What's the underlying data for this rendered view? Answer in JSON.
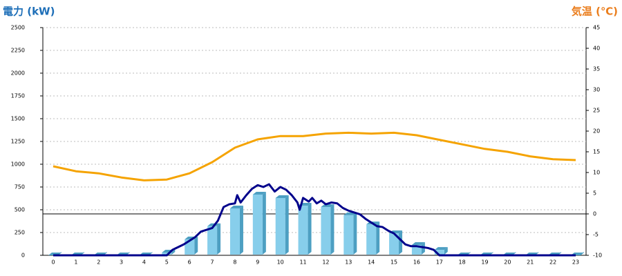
{
  "chart_data": {
    "type": "bar",
    "y_title": "電力 (kW)",
    "y2_title": "気温 (℃)",
    "categories": [
      "0",
      "1",
      "2",
      "3",
      "4",
      "5",
      "6",
      "7",
      "8",
      "9",
      "10",
      "11",
      "12",
      "13",
      "14",
      "15",
      "16",
      "17",
      "18",
      "19",
      "20",
      "21",
      "22",
      "23"
    ],
    "ylim": [
      0,
      2500
    ],
    "yticks": [
      0,
      250,
      500,
      750,
      1000,
      1250,
      1500,
      1750,
      2000,
      2250,
      2500
    ],
    "y2lim": [
      -10,
      45
    ],
    "y2ticks": [
      -10,
      -5,
      0,
      5,
      10,
      15,
      20,
      25,
      30,
      35,
      40,
      45
    ],
    "grid": true,
    "series": [
      {
        "kind": "bar",
        "color": "#87ceeb",
        "side_color": "#4d9fc2",
        "values": [
          0,
          0,
          0,
          0,
          0,
          30,
          175,
          320,
          515,
          667,
          629,
          545,
          530,
          440,
          340,
          242,
          114,
          60,
          0,
          0,
          0,
          0,
          0,
          0
        ]
      },
      {
        "kind": "line",
        "color": "#00008b",
        "x": [
          0,
          5,
          5.25,
          5.5,
          5.75,
          6,
          6.25,
          6.5,
          6.75,
          7,
          7.25,
          7.5,
          7.75,
          8,
          8.1,
          8.25,
          8.5,
          8.75,
          9,
          9.25,
          9.5,
          9.75,
          10,
          10.25,
          10.5,
          10.75,
          10.85,
          11,
          11.25,
          11.4,
          11.6,
          11.8,
          12,
          12.25,
          12.5,
          12.75,
          13,
          13.25,
          13.5,
          13.75,
          14,
          14.25,
          14.5,
          14.75,
          15,
          15.25,
          15.5,
          15.75,
          16,
          16.25,
          16.5,
          16.75,
          17,
          23
        ],
        "values": [
          0,
          0,
          60,
          90,
          120,
          160,
          200,
          260,
          280,
          300,
          380,
          530,
          560,
          570,
          660,
          580,
          660,
          730,
          770,
          750,
          780,
          700,
          750,
          720,
          660,
          580,
          500,
          630,
          590,
          630,
          570,
          600,
          560,
          580,
          570,
          520,
          490,
          470,
          450,
          400,
          360,
          320,
          310,
          270,
          240,
          180,
          120,
          100,
          100,
          90,
          80,
          60,
          0,
          0
        ]
      },
      {
        "kind": "line",
        "axis": "y2",
        "color": "#f5a300",
        "values": [
          11.5,
          10.3,
          9.8,
          8.8,
          8.1,
          8.3,
          9.8,
          12.5,
          16,
          18,
          18.8,
          18.8,
          19.4,
          19.6,
          19.4,
          19.6,
          19,
          17.9,
          16.8,
          15.7,
          15,
          13.9,
          13.2,
          13
        ]
      }
    ]
  }
}
